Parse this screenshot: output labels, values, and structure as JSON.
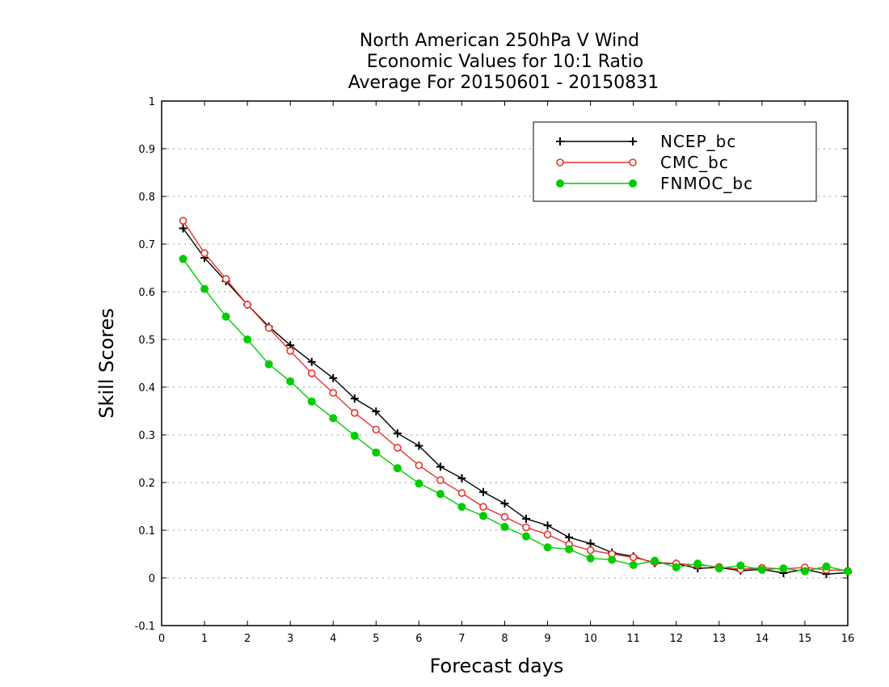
{
  "chart_data": {
    "type": "line",
    "title": [
      "North American 250hPa V Wind",
      "Economic Values for 10:1 Ratio",
      "Average For 20150601 - 20150831"
    ],
    "xlabel": "Forecast days",
    "ylabel": "Skill Scores",
    "xlim": [
      0,
      16
    ],
    "ylim": [
      -0.1,
      1
    ],
    "xticks": [
      "0",
      "1",
      "2",
      "3",
      "4",
      "5",
      "6",
      "7",
      "8",
      "9",
      "10",
      "11",
      "12",
      "13",
      "14",
      "15",
      "16"
    ],
    "yticks": [
      "-0.1",
      "0",
      "0.1",
      "0.2",
      "0.3",
      "0.4",
      "0.5",
      "0.6",
      "0.7",
      "0.8",
      "0.9",
      "1"
    ],
    "grid": "horizontal dotted",
    "legend_position": "top-right",
    "x": [
      0.5,
      1,
      1.5,
      2,
      2.5,
      3,
      3.5,
      4,
      4.5,
      5,
      5.5,
      6,
      6.5,
      7,
      7.5,
      8,
      8.5,
      9,
      9.5,
      10,
      10.5,
      11,
      11.5,
      12,
      12.5,
      13,
      13.5,
      14,
      14.5,
      15,
      15.5,
      16
    ],
    "series": [
      {
        "name": "NCEP_bc",
        "color": "#000000",
        "marker": "plus",
        "values": [
          0.733,
          0.671,
          0.622,
          0.573,
          0.527,
          0.488,
          0.453,
          0.419,
          0.376,
          0.349,
          0.303,
          0.277,
          0.233,
          0.209,
          0.18,
          0.156,
          0.124,
          0.11,
          0.085,
          0.072,
          0.053,
          0.045,
          0.031,
          0.03,
          0.02,
          0.022,
          0.015,
          0.018,
          0.01,
          0.018,
          0.008,
          0.011
        ]
      },
      {
        "name": "CMC_bc",
        "color": "#e8322e",
        "marker": "open-circle",
        "values": [
          0.749,
          0.681,
          0.627,
          0.573,
          0.524,
          0.476,
          0.429,
          0.388,
          0.346,
          0.311,
          0.273,
          0.236,
          0.205,
          0.178,
          0.149,
          0.128,
          0.106,
          0.091,
          0.07,
          0.058,
          0.05,
          0.043,
          0.033,
          0.03,
          0.027,
          0.023,
          0.018,
          0.021,
          0.019,
          0.022,
          0.017,
          0.015
        ]
      },
      {
        "name": "FNMOC_bc",
        "color": "#00cc00",
        "marker": "filled-circle",
        "values": [
          0.669,
          0.606,
          0.548,
          0.5,
          0.448,
          0.412,
          0.37,
          0.335,
          0.298,
          0.263,
          0.23,
          0.198,
          0.176,
          0.149,
          0.13,
          0.107,
          0.087,
          0.064,
          0.06,
          0.041,
          0.038,
          0.027,
          0.036,
          0.022,
          0.03,
          0.02,
          0.026,
          0.017,
          0.02,
          0.014,
          0.024,
          0.014
        ]
      }
    ]
  }
}
